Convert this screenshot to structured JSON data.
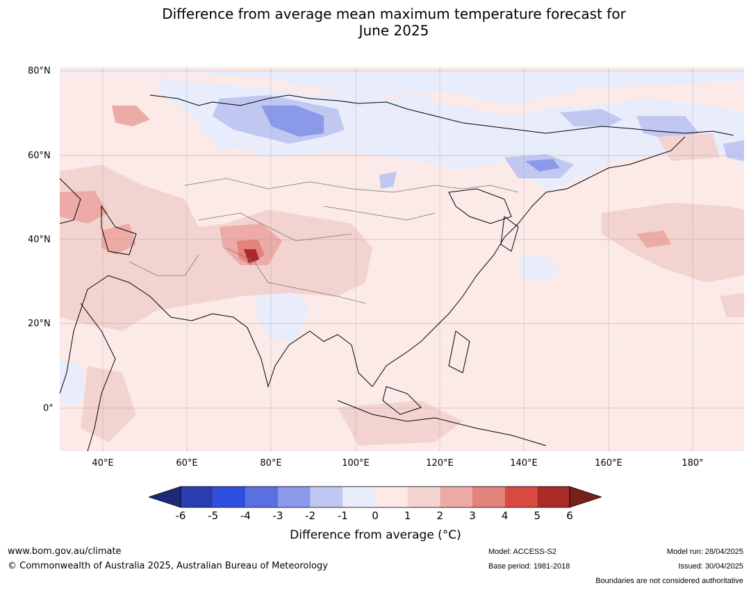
{
  "title": {
    "line1": "Difference from average mean maximum temperature forecast for",
    "line2": "June 2025"
  },
  "map": {
    "lat_labels": [
      "80°N",
      "60°N",
      "40°N",
      "20°N",
      "0°"
    ],
    "lon_labels": [
      "40°E",
      "60°E",
      "80°E",
      "100°E",
      "120°E",
      "140°E",
      "160°E",
      "180°"
    ],
    "background_color": "#fbeae8"
  },
  "colorbar": {
    "ticks": [
      "-6",
      "-5",
      "-4",
      "-3",
      "-2",
      "-1",
      "0",
      "1",
      "2",
      "3",
      "4",
      "5",
      "6"
    ],
    "colors": [
      "#1c2a78",
      "#2a3db0",
      "#2f4fe0",
      "#5a70e0",
      "#8a99ea",
      "#c0c8f2",
      "#e8ecfb",
      "#fbeae8",
      "#f3d3cf",
      "#ecaba6",
      "#e4827c",
      "#d94a42",
      "#a92a26",
      "#761f1b"
    ],
    "label": "Difference from average (°C)"
  },
  "footer": {
    "website": "www.bom.gov.au/climate",
    "copyright": "© Commonwealth of Australia 2025, Australian Bureau of Meteorology",
    "model": "Model: ACCESS-S2",
    "base_period": "Base period: 1981-2018",
    "model_run": "Model run: 28/04/2025",
    "issued": "Issued: 30/04/2025",
    "boundaries": "Boundaries are not considered authoritative"
  }
}
